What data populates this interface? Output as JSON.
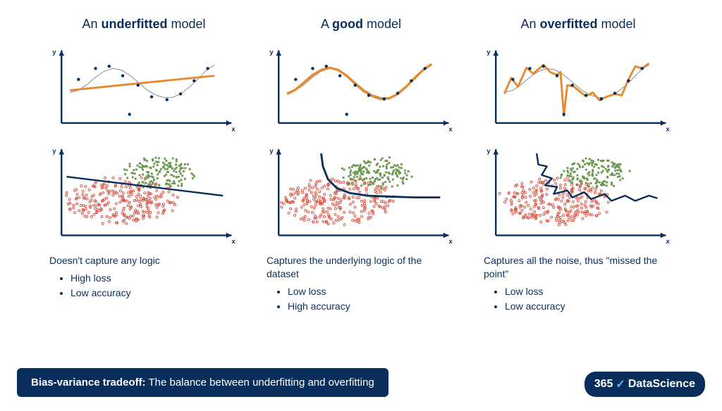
{
  "colors": {
    "text": "#0a2e5c",
    "axis": "#0a2e5c",
    "model_line": "#e58a2e",
    "true_line": "#888888",
    "point": "#0a2e5c",
    "red_cluster": "#d94a3a",
    "green_cluster": "#6a994e",
    "boundary": "#0a2e5c",
    "banner_bg": "#0a2e5c",
    "banner_text": "#ffffff",
    "logo_accent": "#4fc3f7"
  },
  "columns": [
    {
      "title_pre": "An ",
      "title_bold": "underfitted",
      "title_post": " model",
      "desc_main": "Doesn't capture any logic",
      "bullets": [
        "High loss",
        "Low accuracy"
      ],
      "line_chart": {
        "type": "line",
        "xlim": [
          0,
          10
        ],
        "ylim": [
          0,
          10
        ],
        "true_curve": [
          [
            0.5,
            4.2
          ],
          [
            1,
            4.5
          ],
          [
            1.5,
            5.3
          ],
          [
            2,
            6.3
          ],
          [
            2.5,
            7.1
          ],
          [
            3,
            7.5
          ],
          [
            3.5,
            7.3
          ],
          [
            4,
            6.6
          ],
          [
            4.5,
            5.6
          ],
          [
            5,
            4.6
          ],
          [
            5.5,
            3.9
          ],
          [
            6,
            3.5
          ],
          [
            6.5,
            3.5
          ],
          [
            7,
            4.0
          ],
          [
            7.5,
            4.9
          ],
          [
            8,
            6.0
          ],
          [
            8.5,
            7.2
          ],
          [
            9,
            8.0
          ]
        ],
        "model_curve": [
          [
            0.5,
            4.5
          ],
          [
            9,
            6.5
          ]
        ],
        "model_width": 3,
        "data_points": [
          [
            1.0,
            6.0
          ],
          [
            2.0,
            7.5
          ],
          [
            2.8,
            7.8
          ],
          [
            3.6,
            6.5
          ],
          [
            4.5,
            5.2
          ],
          [
            5.3,
            3.6
          ],
          [
            6.2,
            3.2
          ],
          [
            7.0,
            4.0
          ],
          [
            7.8,
            5.8
          ],
          [
            8.6,
            7.5
          ],
          [
            4.0,
            1.2
          ]
        ]
      },
      "scatter_chart": {
        "type": "scatter-classification",
        "xlim": [
          0,
          10
        ],
        "ylim": [
          0,
          10
        ],
        "red_center": [
          3.5,
          4.0
        ],
        "red_radius": 3.2,
        "red_count": 250,
        "green_center": [
          5.8,
          7.2
        ],
        "green_radius": 2.0,
        "green_count": 150,
        "boundary": [
          [
            0.3,
            6.8
          ],
          [
            9.5,
            4.6
          ]
        ],
        "boundary_width": 2.5
      }
    },
    {
      "title_pre": "A ",
      "title_bold": "good",
      "title_post": " model",
      "desc_main": "Captures the underlying logic of the dataset",
      "bullets": [
        "Low loss",
        "High accuracy"
      ],
      "line_chart": {
        "type": "line",
        "xlim": [
          0,
          10
        ],
        "ylim": [
          0,
          10
        ],
        "true_curve": [
          [
            0.5,
            4.2
          ],
          [
            1,
            4.5
          ],
          [
            1.5,
            5.3
          ],
          [
            2,
            6.3
          ],
          [
            2.5,
            7.1
          ],
          [
            3,
            7.5
          ],
          [
            3.5,
            7.3
          ],
          [
            4,
            6.6
          ],
          [
            4.5,
            5.6
          ],
          [
            5,
            4.6
          ],
          [
            5.5,
            3.9
          ],
          [
            6,
            3.5
          ],
          [
            6.5,
            3.5
          ],
          [
            7,
            4.0
          ],
          [
            7.5,
            4.9
          ],
          [
            8,
            6.0
          ],
          [
            8.5,
            7.2
          ],
          [
            9,
            8.0
          ]
        ],
        "model_curve": [
          [
            0.5,
            4.0
          ],
          [
            1,
            4.6
          ],
          [
            1.5,
            5.6
          ],
          [
            2,
            6.6
          ],
          [
            2.5,
            7.3
          ],
          [
            3,
            7.6
          ],
          [
            3.5,
            7.3
          ],
          [
            4,
            6.5
          ],
          [
            4.5,
            5.4
          ],
          [
            5,
            4.4
          ],
          [
            5.5,
            3.7
          ],
          [
            6,
            3.3
          ],
          [
            6.5,
            3.4
          ],
          [
            7,
            4.0
          ],
          [
            7.5,
            5.0
          ],
          [
            8,
            6.2
          ],
          [
            8.5,
            7.3
          ],
          [
            9,
            8.1
          ]
        ],
        "model_width": 3.5,
        "data_points": [
          [
            1.0,
            6.0
          ],
          [
            2.0,
            7.5
          ],
          [
            2.8,
            7.8
          ],
          [
            3.6,
            6.5
          ],
          [
            4.5,
            5.2
          ],
          [
            5.3,
            3.8
          ],
          [
            6.2,
            3.3
          ],
          [
            7.0,
            4.1
          ],
          [
            7.8,
            5.8
          ],
          [
            8.6,
            7.5
          ],
          [
            4.0,
            1.2
          ]
        ]
      },
      "scatter_chart": {
        "type": "scatter-classification",
        "xlim": [
          0,
          10
        ],
        "ylim": [
          0,
          10
        ],
        "red_center": [
          3.5,
          4.0
        ],
        "red_radius": 3.2,
        "red_count": 250,
        "green_center": [
          5.8,
          7.2
        ],
        "green_radius": 2.0,
        "green_count": 150,
        "boundary": [
          [
            2.5,
            9.5
          ],
          [
            2.6,
            8.0
          ],
          [
            2.9,
            6.5
          ],
          [
            3.4,
            5.5
          ],
          [
            4.2,
            4.9
          ],
          [
            5.2,
            4.6
          ],
          [
            6.5,
            4.5
          ],
          [
            8.0,
            4.4
          ],
          [
            9.5,
            4.4
          ]
        ],
        "boundary_width": 3
      }
    },
    {
      "title_pre": "An ",
      "title_bold": "overfitted",
      "title_post": " model",
      "desc_main": "Captures all the noise, thus \"missed the point\"",
      "bullets": [
        "Low loss",
        "Low accuracy"
      ],
      "line_chart": {
        "type": "line",
        "xlim": [
          0,
          10
        ],
        "ylim": [
          0,
          10
        ],
        "true_curve": [
          [
            0.5,
            4.2
          ],
          [
            1,
            4.5
          ],
          [
            1.5,
            5.3
          ],
          [
            2,
            6.3
          ],
          [
            2.5,
            7.1
          ],
          [
            3,
            7.5
          ],
          [
            3.5,
            7.3
          ],
          [
            4,
            6.6
          ],
          [
            4.5,
            5.6
          ],
          [
            5,
            4.6
          ],
          [
            5.5,
            3.9
          ],
          [
            6,
            3.5
          ],
          [
            6.5,
            3.5
          ],
          [
            7,
            4.0
          ],
          [
            7.5,
            4.9
          ],
          [
            8,
            6.0
          ],
          [
            8.5,
            7.2
          ],
          [
            9,
            8.0
          ]
        ],
        "model_curve": [
          [
            0.5,
            4.0
          ],
          [
            0.9,
            6.2
          ],
          [
            1.3,
            5.0
          ],
          [
            1.8,
            7.6
          ],
          [
            2.2,
            6.8
          ],
          [
            2.8,
            8.0
          ],
          [
            3.2,
            7.0
          ],
          [
            3.6,
            6.6
          ],
          [
            3.8,
            7.0
          ],
          [
            4.0,
            1.0
          ],
          [
            4.2,
            5.2
          ],
          [
            4.6,
            5.0
          ],
          [
            5.0,
            4.2
          ],
          [
            5.3,
            3.7
          ],
          [
            5.7,
            4.2
          ],
          [
            6.1,
            3.1
          ],
          [
            6.5,
            3.6
          ],
          [
            7.0,
            4.0
          ],
          [
            7.4,
            3.8
          ],
          [
            7.8,
            6.0
          ],
          [
            8.2,
            7.8
          ],
          [
            8.6,
            7.5
          ],
          [
            9.0,
            8.2
          ]
        ],
        "model_width": 3,
        "data_points": [
          [
            1.0,
            6.0
          ],
          [
            2.0,
            7.5
          ],
          [
            2.8,
            7.8
          ],
          [
            3.6,
            6.5
          ],
          [
            4.5,
            5.2
          ],
          [
            5.3,
            3.8
          ],
          [
            6.2,
            3.3
          ],
          [
            7.0,
            4.1
          ],
          [
            7.8,
            5.8
          ],
          [
            8.6,
            7.5
          ],
          [
            4.0,
            1.2
          ]
        ]
      },
      "scatter_chart": {
        "type": "scatter-classification",
        "xlim": [
          0,
          10
        ],
        "ylim": [
          0,
          10
        ],
        "red_center": [
          3.5,
          4.0
        ],
        "red_radius": 3.2,
        "red_count": 250,
        "green_center": [
          5.8,
          7.2
        ],
        "green_radius": 2.0,
        "green_count": 150,
        "boundary": [
          [
            2.4,
            9.5
          ],
          [
            2.5,
            8.2
          ],
          [
            3.0,
            8.0
          ],
          [
            2.7,
            7.0
          ],
          [
            3.3,
            6.6
          ],
          [
            2.9,
            5.8
          ],
          [
            3.6,
            5.6
          ],
          [
            3.4,
            4.8
          ],
          [
            4.2,
            5.2
          ],
          [
            4.5,
            4.4
          ],
          [
            5.2,
            5.0
          ],
          [
            5.6,
            4.2
          ],
          [
            6.4,
            4.8
          ],
          [
            6.8,
            4.0
          ],
          [
            7.6,
            4.6
          ],
          [
            8.2,
            4.0
          ],
          [
            9.0,
            4.6
          ],
          [
            9.5,
            4.3
          ]
        ],
        "boundary_width": 2.5
      }
    }
  ],
  "banner": {
    "bold": "Bias-variance tradeoff:",
    "rest": " The balance between underfitting and overfitting"
  },
  "logo": {
    "part1": "365",
    "check": "✓",
    "part2": "DataScience"
  }
}
